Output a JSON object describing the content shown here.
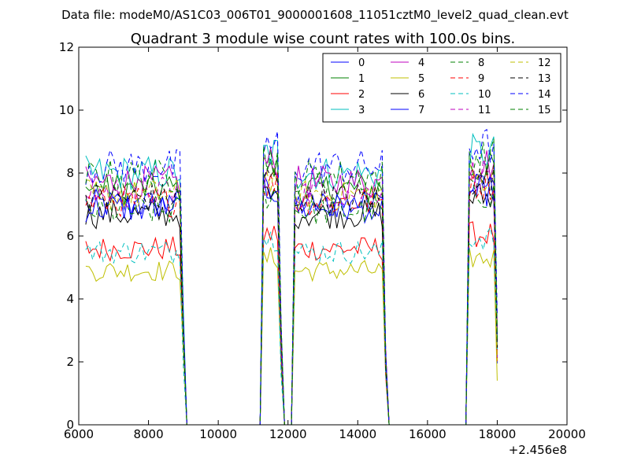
{
  "chart_data": {
    "type": "line",
    "suptitle": "Data file: modeM0/AS1C03_006T01_9000001608_11051cztM0_level2_quad_clean.evt",
    "title": "Quadrant 3 module wise count rates with 100.0s bins.",
    "xlabel": "",
    "ylabel": "",
    "x_offset_label": "+2.456e8",
    "xlim": [
      6000,
      20000
    ],
    "ylim": [
      0,
      12
    ],
    "xticks": [
      6000,
      8000,
      10000,
      12000,
      14000,
      16000,
      18000,
      20000
    ],
    "yticks": [
      0,
      2,
      4,
      6,
      8,
      10,
      12
    ],
    "legend_position": "top-right",
    "segments": [
      {
        "start": 6200,
        "end": 9000,
        "edge_level": 0.62
      },
      {
        "start": 11300,
        "end": 11800,
        "edge_level": 0.55
      },
      {
        "start": 12200,
        "end": 14800,
        "edge_level": 0.45
      },
      {
        "start": 17200,
        "end": 18000,
        "edge_level": 0.55
      }
    ],
    "gaps": [
      [
        9100,
        11200
      ],
      [
        11900,
        12100
      ],
      [
        15000,
        17100
      ]
    ],
    "series": [
      {
        "name": "0",
        "color": "#0000ff",
        "dashed": false,
        "level": 7.0
      },
      {
        "name": "1",
        "color": "#008000",
        "dashed": false,
        "level": 7.5
      },
      {
        "name": "2",
        "color": "#ff0000",
        "dashed": false,
        "level": 5.6
      },
      {
        "name": "3",
        "color": "#00bfbf",
        "dashed": false,
        "level": 8.0
      },
      {
        "name": "4",
        "color": "#bf00bf",
        "dashed": false,
        "level": 7.7
      },
      {
        "name": "5",
        "color": "#bfbf00",
        "dashed": false,
        "level": 4.9
      },
      {
        "name": "6",
        "color": "#000000",
        "dashed": false,
        "level": 6.7
      },
      {
        "name": "7",
        "color": "#0000ff",
        "dashed": false,
        "level": 6.9
      },
      {
        "name": "8",
        "color": "#008000",
        "dashed": true,
        "level": 6.8
      },
      {
        "name": "9",
        "color": "#ff0000",
        "dashed": true,
        "level": 7.1
      },
      {
        "name": "10",
        "color": "#00bfbf",
        "dashed": true,
        "level": 5.5
      },
      {
        "name": "11",
        "color": "#bf00bf",
        "dashed": true,
        "level": 7.4
      },
      {
        "name": "12",
        "color": "#bfbf00",
        "dashed": true,
        "level": 7.3
      },
      {
        "name": "13",
        "color": "#000000",
        "dashed": true,
        "level": 7.2
      },
      {
        "name": "14",
        "color": "#0000ff",
        "dashed": true,
        "level": 8.2
      },
      {
        "name": "15",
        "color": "#008000",
        "dashed": true,
        "level": 7.9
      }
    ]
  }
}
